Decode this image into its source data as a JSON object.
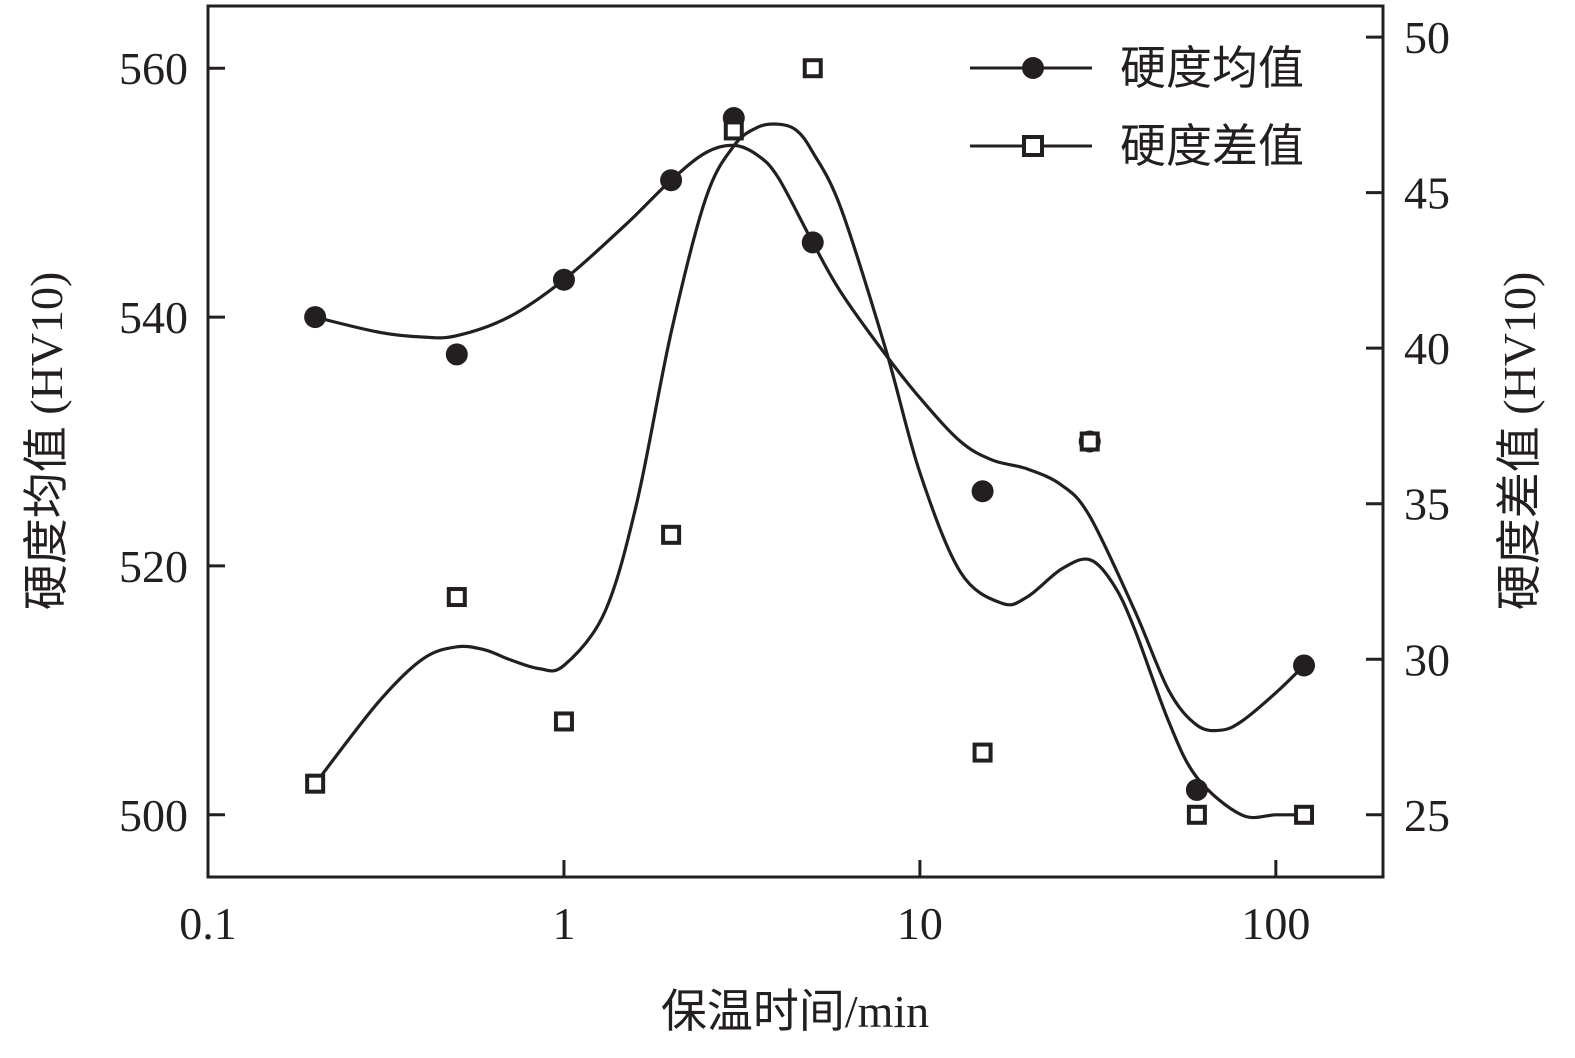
{
  "chart_data": {
    "type": "scatter",
    "x_scale": "log",
    "xlabel": "保温时间/min",
    "ylabel_left": "硬度均值 (HV10)",
    "ylabel_right": "硬度差值 (HV10)",
    "xlim": [
      0.1,
      200
    ],
    "x_ticks": [
      {
        "value": 0.1,
        "label": "0.1"
      },
      {
        "value": 1,
        "label": "1"
      },
      {
        "value": 10,
        "label": "10"
      },
      {
        "value": 100,
        "label": "100"
      }
    ],
    "ylim_left": [
      495,
      565
    ],
    "ylim_right": [
      23,
      51
    ],
    "y_left_ticks": [
      {
        "value": 500,
        "label": "500"
      },
      {
        "value": 520,
        "label": "520"
      },
      {
        "value": 540,
        "label": "540"
      },
      {
        "value": 560,
        "label": "560"
      }
    ],
    "y_right_ticks": [
      {
        "value": 25,
        "label": "25"
      },
      {
        "value": 30,
        "label": "30"
      },
      {
        "value": 35,
        "label": "35"
      },
      {
        "value": 40,
        "label": "40"
      },
      {
        "value": 45,
        "label": "45"
      },
      {
        "value": 50,
        "label": "50"
      }
    ],
    "grid": false,
    "legend_position": "top-right",
    "series": [
      {
        "name": "硬度均值",
        "axis": "left",
        "marker": "filled-circle",
        "x": [
          0.2,
          0.5,
          1,
          2,
          3,
          5,
          15,
          30,
          60,
          120
        ],
        "y": [
          540,
          537,
          543,
          551,
          556,
          546,
          526,
          530,
          502,
          512
        ],
        "fit_x": [
          0.2,
          0.3,
          0.4,
          0.5,
          0.7,
          1.0,
          1.5,
          2.0,
          2.5,
          3.0,
          3.5,
          4,
          5,
          6,
          8,
          10,
          13,
          16,
          20,
          25,
          30,
          40,
          50,
          60,
          70,
          80,
          100,
          120
        ],
        "fit_y": [
          540,
          538.8,
          538.4,
          538.5,
          540,
          543,
          547.5,
          551,
          553.2,
          553.8,
          553,
          551.2,
          546,
          542,
          537,
          533.5,
          530,
          528.5,
          527.8,
          526.5,
          524,
          516.5,
          510,
          507.2,
          506.8,
          507.5,
          509.8,
          512
        ]
      },
      {
        "name": "硬度差值",
        "axis": "right",
        "marker": "open-square",
        "x": [
          0.2,
          0.5,
          1,
          2,
          3,
          5,
          15,
          30,
          60,
          120
        ],
        "y": [
          26,
          32,
          28,
          34,
          47,
          49,
          27,
          37,
          25,
          25
        ],
        "fit_x": [
          0.2,
          0.3,
          0.4,
          0.5,
          0.6,
          0.7,
          0.85,
          1.0,
          1.3,
          1.6,
          2.0,
          2.5,
          3.0,
          3.5,
          4.0,
          4.5,
          5,
          6,
          8,
          10,
          13,
          17,
          20,
          25,
          30,
          35,
          40,
          50,
          60,
          80,
          100,
          120
        ],
        "fit_y": [
          26,
          28.6,
          30,
          30.4,
          30.3,
          30,
          29.7,
          29.8,
          31.5,
          35,
          40.5,
          44.8,
          46.5,
          47.1,
          47.2,
          47,
          46.3,
          44.5,
          40,
          36,
          32.8,
          31.8,
          32,
          32.9,
          33.2,
          32.4,
          31,
          28,
          26.2,
          25,
          25,
          25
        ]
      }
    ]
  }
}
